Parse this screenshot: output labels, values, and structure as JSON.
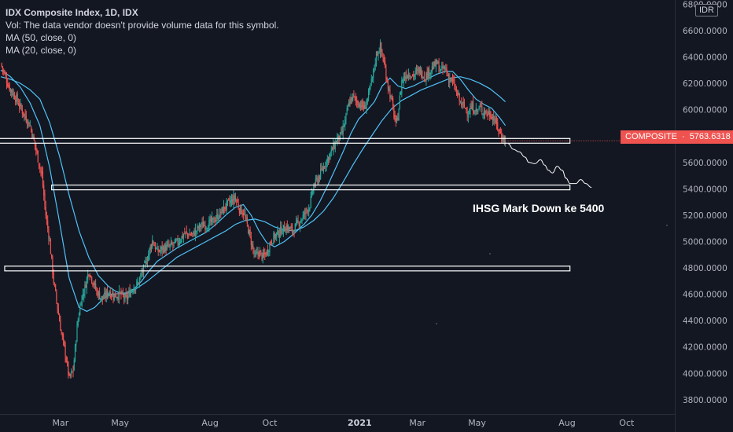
{
  "legend": {
    "symbol": "IDX Composite Index, 1D, IDX",
    "volume": "Vol: The data vendor doesn't provide volume data for this symbol.",
    "ma50": "MA (50, close, 0)",
    "ma20": "MA (20, close, 0)"
  },
  "currency": "IDR",
  "price_badge": {
    "label": "COMPOSITE",
    "value": "5763.6318",
    "color": "#ef5350"
  },
  "annotation": "IHSG Mark Down ke 5400",
  "colors": {
    "up": "#26a69a",
    "down": "#ef5350",
    "ma": "#4fc3f7",
    "background": "#131722"
  },
  "chart_data": {
    "type": "candlestick",
    "y_ticks": [
      "6800.0000",
      "6600.0000",
      "6400.0000",
      "6200.0000",
      "6000.0000",
      "5800.0000",
      "5600.0000",
      "5400.0000",
      "5200.0000",
      "5000.0000",
      "4800.0000",
      "4600.0000",
      "4400.0000",
      "4200.0000",
      "4000.0000",
      "3800.0000"
    ],
    "x_ticks": [
      {
        "label": "Mar",
        "t": 61,
        "bold": false
      },
      {
        "label": "May",
        "t": 122,
        "bold": false
      },
      {
        "label": "Aug",
        "t": 214,
        "bold": false
      },
      {
        "label": "Oct",
        "t": 275,
        "bold": false
      },
      {
        "label": "2021",
        "t": 367,
        "bold": true
      },
      {
        "label": "Mar",
        "t": 426,
        "bold": false
      },
      {
        "label": "May",
        "t": 487,
        "bold": false
      },
      {
        "label": "Aug",
        "t": 579,
        "bold": false
      },
      {
        "label": "Oct",
        "t": 640,
        "bold": false
      }
    ],
    "ylim": [
      3680,
      6820
    ],
    "t_range": [
      0,
      690
    ],
    "last_close": 5763.6318,
    "support_levels": [
      {
        "value": 5763.6,
        "t_start": -5,
        "t_end": 582
      },
      {
        "value": 5410,
        "t_start": 52,
        "t_end": 582
      },
      {
        "value": 4795,
        "t_start": 4,
        "t_end": 582
      }
    ],
    "close_path": [
      [
        0,
        6350
      ],
      [
        8,
        6180
      ],
      [
        16,
        6080
      ],
      [
        24,
        5960
      ],
      [
        30,
        5880
      ],
      [
        34,
        5760
      ],
      [
        38,
        5630
      ],
      [
        42,
        5500
      ],
      [
        46,
        5200
      ],
      [
        50,
        5000
      ],
      [
        54,
        4700
      ],
      [
        58,
        4500
      ],
      [
        62,
        4300
      ],
      [
        66,
        4150
      ],
      [
        70,
        3960
      ],
      [
        74,
        4020
      ],
      [
        78,
        4350
      ],
      [
        82,
        4560
      ],
      [
        86,
        4650
      ],
      [
        90,
        4780
      ],
      [
        94,
        4700
      ],
      [
        98,
        4620
      ],
      [
        104,
        4560
      ],
      [
        110,
        4620
      ],
      [
        116,
        4590
      ],
      [
        122,
        4600
      ],
      [
        128,
        4560
      ],
      [
        134,
        4640
      ],
      [
        140,
        4680
      ],
      [
        146,
        4790
      ],
      [
        150,
        4880
      ],
      [
        155,
        5010
      ],
      [
        160,
        4920
      ],
      [
        166,
        4950
      ],
      [
        172,
        4960
      ],
      [
        180,
        4990
      ],
      [
        188,
        5060
      ],
      [
        196,
        5050
      ],
      [
        204,
        5120
      ],
      [
        212,
        5130
      ],
      [
        218,
        5160
      ],
      [
        224,
        5210
      ],
      [
        230,
        5270
      ],
      [
        236,
        5310
      ],
      [
        240,
        5330
      ],
      [
        244,
        5250
      ],
      [
        248,
        5220
      ],
      [
        252,
        5120
      ],
      [
        256,
        5000
      ],
      [
        260,
        4880
      ],
      [
        264,
        4920
      ],
      [
        268,
        4880
      ],
      [
        272,
        4920
      ],
      [
        276,
        5000
      ],
      [
        280,
        5040
      ],
      [
        286,
        5080
      ],
      [
        292,
        5110
      ],
      [
        298,
        5080
      ],
      [
        304,
        5140
      ],
      [
        310,
        5200
      ],
      [
        316,
        5280
      ],
      [
        320,
        5420
      ],
      [
        326,
        5500
      ],
      [
        332,
        5600
      ],
      [
        338,
        5680
      ],
      [
        344,
        5780
      ],
      [
        348,
        5800
      ],
      [
        352,
        5910
      ],
      [
        356,
        6050
      ],
      [
        360,
        6100
      ],
      [
        364,
        6060
      ],
      [
        368,
        6040
      ],
      [
        372,
        6010
      ],
      [
        376,
        6110
      ],
      [
        380,
        6240
      ],
      [
        384,
        6420
      ],
      [
        388,
        6470
      ],
      [
        392,
        6350
      ],
      [
        396,
        6180
      ],
      [
        400,
        6050
      ],
      [
        404,
        5880
      ],
      [
        406,
        5950
      ],
      [
        410,
        6220
      ],
      [
        416,
        6280
      ],
      [
        422,
        6260
      ],
      [
        428,
        6300
      ],
      [
        434,
        6250
      ],
      [
        440,
        6310
      ],
      [
        446,
        6350
      ],
      [
        450,
        6290
      ],
      [
        454,
        6320
      ],
      [
        458,
        6240
      ],
      [
        462,
        6210
      ],
      [
        466,
        6130
      ],
      [
        470,
        6050
      ],
      [
        474,
        6020
      ],
      [
        478,
        5980
      ],
      [
        482,
        6020
      ],
      [
        486,
        5990
      ],
      [
        490,
        6010
      ],
      [
        494,
        5990
      ],
      [
        498,
        5970
      ],
      [
        502,
        5960
      ],
      [
        506,
        5900
      ],
      [
        510,
        5830
      ],
      [
        513,
        5790
      ],
      [
        516,
        5764
      ]
    ],
    "ma20": [
      [
        0,
        6300
      ],
      [
        10,
        6250
      ],
      [
        20,
        6170
      ],
      [
        30,
        6050
      ],
      [
        40,
        5880
      ],
      [
        50,
        5560
      ],
      [
        60,
        5150
      ],
      [
        70,
        4720
      ],
      [
        80,
        4500
      ],
      [
        88,
        4470
      ],
      [
        96,
        4500
      ],
      [
        104,
        4560
      ],
      [
        112,
        4600
      ],
      [
        120,
        4605
      ],
      [
        128,
        4610
      ],
      [
        136,
        4640
      ],
      [
        144,
        4700
      ],
      [
        152,
        4780
      ],
      [
        160,
        4850
      ],
      [
        170,
        4900
      ],
      [
        180,
        4950
      ],
      [
        190,
        4990
      ],
      [
        200,
        5030
      ],
      [
        210,
        5070
      ],
      [
        220,
        5130
      ],
      [
        230,
        5200
      ],
      [
        240,
        5260
      ],
      [
        248,
        5280
      ],
      [
        256,
        5200
      ],
      [
        264,
        5080
      ],
      [
        272,
        4990
      ],
      [
        280,
        4960
      ],
      [
        290,
        5000
      ],
      [
        300,
        5060
      ],
      [
        310,
        5130
      ],
      [
        318,
        5200
      ],
      [
        326,
        5300
      ],
      [
        334,
        5420
      ],
      [
        342,
        5550
      ],
      [
        350,
        5680
      ],
      [
        358,
        5820
      ],
      [
        366,
        5930
      ],
      [
        374,
        5990
      ],
      [
        382,
        6060
      ],
      [
        390,
        6180
      ],
      [
        398,
        6240
      ],
      [
        406,
        6180
      ],
      [
        414,
        6160
      ],
      [
        422,
        6180
      ],
      [
        430,
        6210
      ],
      [
        438,
        6240
      ],
      [
        446,
        6270
      ],
      [
        454,
        6290
      ],
      [
        462,
        6290
      ],
      [
        470,
        6230
      ],
      [
        478,
        6150
      ],
      [
        486,
        6080
      ],
      [
        494,
        6040
      ],
      [
        502,
        6010
      ],
      [
        510,
        5940
      ],
      [
        516,
        5880
      ]
    ],
    "ma50": [
      [
        0,
        6250
      ],
      [
        10,
        6230
      ],
      [
        20,
        6200
      ],
      [
        30,
        6150
      ],
      [
        40,
        6080
      ],
      [
        50,
        5900
      ],
      [
        60,
        5650
      ],
      [
        70,
        5350
      ],
      [
        80,
        5080
      ],
      [
        90,
        4880
      ],
      [
        100,
        4740
      ],
      [
        110,
        4660
      ],
      [
        118,
        4620
      ],
      [
        126,
        4600
      ],
      [
        134,
        4620
      ],
      [
        142,
        4660
      ],
      [
        150,
        4700
      ],
      [
        160,
        4760
      ],
      [
        170,
        4820
      ],
      [
        180,
        4880
      ],
      [
        190,
        4920
      ],
      [
        200,
        4960
      ],
      [
        210,
        5000
      ],
      [
        220,
        5040
      ],
      [
        230,
        5080
      ],
      [
        240,
        5130
      ],
      [
        250,
        5160
      ],
      [
        260,
        5170
      ],
      [
        270,
        5150
      ],
      [
        280,
        5110
      ],
      [
        290,
        5090
      ],
      [
        300,
        5080
      ],
      [
        310,
        5110
      ],
      [
        320,
        5160
      ],
      [
        330,
        5230
      ],
      [
        340,
        5330
      ],
      [
        350,
        5450
      ],
      [
        360,
        5580
      ],
      [
        370,
        5700
      ],
      [
        380,
        5810
      ],
      [
        390,
        5920
      ],
      [
        400,
        6010
      ],
      [
        410,
        6070
      ],
      [
        420,
        6110
      ],
      [
        430,
        6150
      ],
      [
        440,
        6180
      ],
      [
        450,
        6210
      ],
      [
        460,
        6240
      ],
      [
        470,
        6250
      ],
      [
        480,
        6230
      ],
      [
        490,
        6200
      ],
      [
        500,
        6160
      ],
      [
        510,
        6100
      ],
      [
        516,
        6060
      ]
    ],
    "projection": [
      [
        519,
        5740
      ],
      [
        524,
        5700
      ],
      [
        530,
        5680
      ],
      [
        536,
        5640
      ],
      [
        540,
        5600
      ],
      [
        546,
        5590
      ],
      [
        552,
        5620
      ],
      [
        556,
        5580
      ],
      [
        560,
        5540
      ],
      [
        564,
        5520
      ],
      [
        569,
        5570
      ],
      [
        574,
        5540
      ],
      [
        578,
        5480
      ],
      [
        582,
        5440
      ],
      [
        588,
        5440
      ],
      [
        593,
        5470
      ],
      [
        598,
        5440
      ],
      [
        604,
        5410
      ]
    ]
  }
}
